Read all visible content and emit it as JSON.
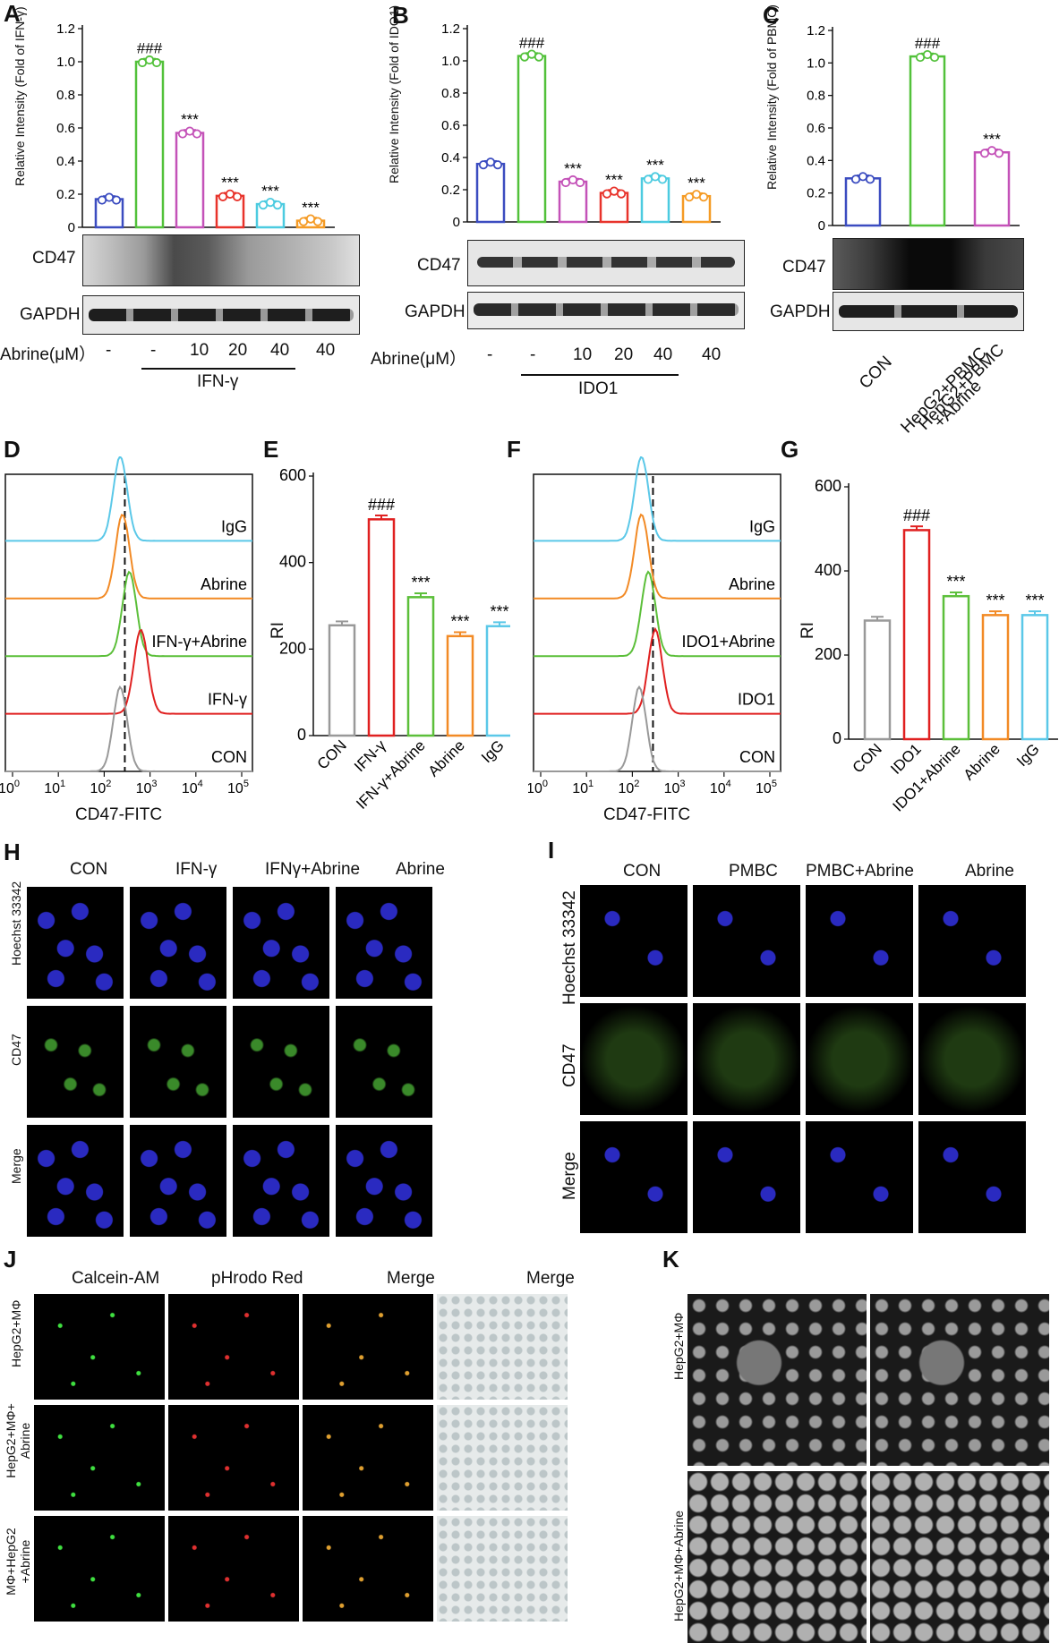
{
  "panels": {
    "A": {
      "label": "A"
    },
    "B": {
      "label": "B"
    },
    "C": {
      "label": "C"
    },
    "D": {
      "label": "D"
    },
    "E": {
      "label": "E"
    },
    "F": {
      "label": "F"
    },
    "G": {
      "label": "G"
    },
    "H": {
      "label": "H"
    },
    "I": {
      "label": "I"
    },
    "J": {
      "label": "J"
    },
    "K": {
      "label": "K"
    }
  },
  "chart_data": [
    {
      "id": "A",
      "type": "bar",
      "ylabel": "Relative Intensity (Fold of IFN-γ)",
      "ylim": [
        0,
        1.2
      ],
      "yticks": [
        "0",
        "0.2",
        "0.4",
        "0.6",
        "0.8",
        "1.0",
        "1.2"
      ],
      "values": [
        0.17,
        1.0,
        0.57,
        0.19,
        0.14,
        0.04
      ],
      "colors": [
        "#3b4cc0",
        "#52c13a",
        "#c452b8",
        "#e8332b",
        "#4ccbe0",
        "#f59b25"
      ],
      "annotations": [
        "",
        "###",
        "***",
        "***",
        "***",
        "***"
      ],
      "blot_rows": [
        "CD47",
        "GAPDH"
      ],
      "treatment_label": "Abrine(μM）",
      "doses": [
        "-",
        "-",
        "10",
        "20",
        "40",
        "40"
      ],
      "group_label": "IFN-γ"
    },
    {
      "id": "B",
      "type": "bar",
      "ylabel": "Relative Intensity (Fold of IDO1)",
      "ylim": [
        0,
        1.2
      ],
      "yticks": [
        "0",
        "0.2",
        "0.4",
        "0.6",
        "0.8",
        "1.0",
        "1.2"
      ],
      "values": [
        0.36,
        1.03,
        0.25,
        0.18,
        0.27,
        0.16
      ],
      "colors": [
        "#3b4cc0",
        "#52c13a",
        "#c452b8",
        "#e8332b",
        "#4ccbe0",
        "#f59b25"
      ],
      "annotations": [
        "",
        "###",
        "***",
        "***",
        "***",
        "***"
      ],
      "blot_rows": [
        "CD47",
        "GAPDH"
      ],
      "treatment_label": "Abrine(μM）",
      "doses": [
        "-",
        "-",
        "10",
        "20",
        "40",
        "40"
      ],
      "group_label": "IDO1"
    },
    {
      "id": "C",
      "type": "bar",
      "ylabel": "Relative Intensity (Fold of PBMC)",
      "ylim": [
        0,
        1.2
      ],
      "yticks": [
        "0",
        "0.2",
        "0.4",
        "0.6",
        "0.8",
        "1.0",
        "1.2"
      ],
      "values": [
        0.29,
        1.04,
        0.45
      ],
      "colors": [
        "#3b4cc0",
        "#52c13a",
        "#c452b8"
      ],
      "annotations": [
        "",
        "###",
        "***"
      ],
      "blot_rows": [
        "CD47",
        "GAPDH"
      ],
      "categories": [
        "CON",
        "HepG2+PBMC",
        "HepG2+PBMC +Abrine"
      ]
    },
    {
      "id": "D",
      "type": "histogram",
      "xlabel": "CD47-FITC",
      "xticks": [
        "10",
        "10",
        "10",
        "10",
        "10",
        "10"
      ],
      "xtick_exps": [
        "0",
        "1",
        "2",
        "3",
        "4",
        "5"
      ],
      "series": [
        "IgG",
        "Abrine",
        "IFN-γ+Abrine",
        "IFN-γ",
        "CON"
      ],
      "colors": [
        "#5bc8e8",
        "#f28a25",
        "#5cbf3a",
        "#e02020",
        "#999999"
      ]
    },
    {
      "id": "E",
      "type": "bar",
      "ylabel": "RI",
      "ylim": [
        0,
        600
      ],
      "yticks": [
        "0",
        "200",
        "400",
        "600"
      ],
      "categories": [
        "CON",
        "IFN-γ",
        "IFN-γ+Abrine",
        "Abrine",
        "IgG"
      ],
      "values": [
        255,
        500,
        320,
        230,
        253
      ],
      "colors": [
        "#999999",
        "#e02020",
        "#5cbf3a",
        "#f28a25",
        "#5bc8e8"
      ],
      "annotations": [
        "",
        "###",
        "***",
        "***",
        "***"
      ]
    },
    {
      "id": "F",
      "type": "histogram",
      "xlabel": "CD47-FITC",
      "xticks": [
        "10",
        "10",
        "10",
        "10",
        "10",
        "10"
      ],
      "xtick_exps": [
        "0",
        "1",
        "2",
        "3",
        "4",
        "5"
      ],
      "series": [
        "IgG",
        "Abrine",
        "IDO1+Abrine",
        "IDO1",
        "CON"
      ],
      "colors": [
        "#5bc8e8",
        "#f28a25",
        "#5cbf3a",
        "#e02020",
        "#999999"
      ]
    },
    {
      "id": "G",
      "type": "bar",
      "ylabel": "RI",
      "ylim": [
        0,
        600
      ],
      "yticks": [
        "0",
        "200",
        "400",
        "600"
      ],
      "categories": [
        "CON",
        "IDO1",
        "IDO1+Abrine",
        "Abrine",
        "IgG"
      ],
      "values": [
        282,
        497,
        340,
        295,
        295
      ],
      "colors": [
        "#999999",
        "#e02020",
        "#5cbf3a",
        "#f28a25",
        "#5bc8e8"
      ],
      "annotations": [
        "",
        "###",
        "***",
        "***",
        "***"
      ]
    }
  ],
  "panel_H": {
    "columns": [
      "CON",
      "IFN-γ",
      "IFNγ+Abrine",
      "Abrine"
    ],
    "rows": [
      "Hoechst 33342",
      "CD47",
      "Merge"
    ]
  },
  "panel_I": {
    "columns": [
      "CON",
      "PMBC",
      "PMBC+Abrine",
      "Abrine"
    ],
    "rows": [
      "Hoechst 33342",
      "CD47",
      "Merge"
    ]
  },
  "panel_J": {
    "columns": [
      "Calcein-AM",
      "pHrodo Red",
      "Merge",
      "Merge"
    ],
    "rows": [
      "HepG2+MΦ",
      "HepG2+MΦ+ Abrine",
      "MΦ+HepG2 +Abrine"
    ]
  },
  "panel_K": {
    "rows": [
      "HepG2+MΦ",
      "HepG2+MΦ+Abrine"
    ]
  }
}
